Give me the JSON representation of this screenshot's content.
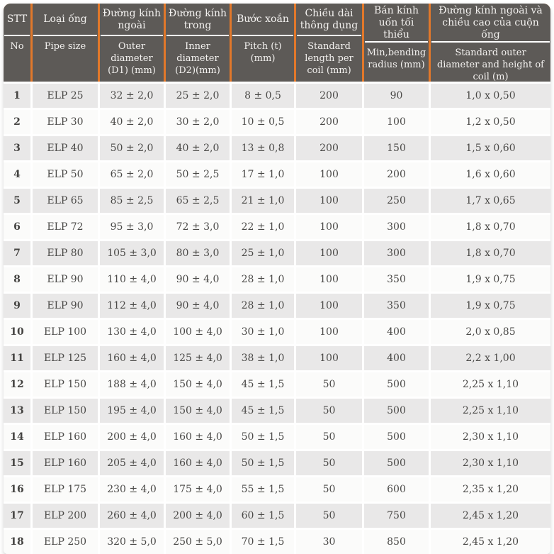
{
  "colors": {
    "header_bg": "#5d5a57",
    "header_text": "#f4f2f0",
    "divider_orange": "#e2782a",
    "divider_white": "#ffffff",
    "row_odd": "#e9e8e8",
    "row_even": "#fbfbfa",
    "body_text": "#4a4947"
  },
  "table": {
    "columns": [
      {
        "vn": "STT",
        "en": "No"
      },
      {
        "vn": "Loại ống",
        "en": "Pipe size"
      },
      {
        "vn": "Đường kính ngoài",
        "en": "Outer diameter (D1) (mm)"
      },
      {
        "vn": "Đường kính trong",
        "en": "Inner diameter (D2)(mm)"
      },
      {
        "vn": "Bước xoắn",
        "en": "Pitch (t)(mm)"
      },
      {
        "vn": "Chiều dài thông dụng",
        "en": "Standard length per coil (mm)"
      },
      {
        "vn": "Bán kính uốn tối thiểu",
        "en": "Min,bending radius (mm)"
      },
      {
        "vn": "Đường kính ngoài và chiều cao của cuộn ống",
        "en": "Standard outer diameter and height of coil (m)"
      }
    ],
    "rows": [
      [
        "1",
        "ELP 25",
        "32 ± 2,0",
        "25 ± 2,0",
        "8 ± 0,5",
        "200",
        "90",
        "1,0 x 0,50"
      ],
      [
        "2",
        "ELP 30",
        "40 ± 2,0",
        "30 ± 2,0",
        "10 ± 0,5",
        "200",
        "100",
        "1,2 x 0,50"
      ],
      [
        "3",
        "ELP 40",
        "50 ± 2,0",
        "40 ± 2,0",
        "13 ± 0,8",
        "200",
        "150",
        "1,5 x 0,60"
      ],
      [
        "4",
        "ELP 50",
        "65 ± 2,0",
        "50 ± 2,5",
        "17 ± 1,0",
        "100",
        "200",
        "1,6 x 0,60"
      ],
      [
        "5",
        "ELP 65",
        "85 ± 2,5",
        "65 ± 2,5",
        "21 ± 1,0",
        "100",
        "250",
        "1,7 x 0,65"
      ],
      [
        "6",
        "ELP 72",
        "95 ± 3,0",
        "72 ± 3,0",
        "22 ± 1,0",
        "100",
        "300",
        "1,8 x 0,70"
      ],
      [
        "7",
        "ELP 80",
        "105 ± 3,0",
        "80 ± 3,0",
        "25 ± 1,0",
        "100",
        "300",
        "1,8 x 0,70"
      ],
      [
        "8",
        "ELP 90",
        "110 ± 4,0",
        "90 ± 4,0",
        "28 ± 1,0",
        "100",
        "350",
        "1,9 x 0,75"
      ],
      [
        "9",
        "ELP 90",
        "112 ± 4,0",
        "90 ± 4,0",
        "28 ± 1,0",
        "100",
        "350",
        "1,9 x 0,75"
      ],
      [
        "10",
        "ELP 100",
        "130 ± 4,0",
        "100 ± 4,0",
        "30 ± 1,0",
        "100",
        "400",
        "2,0 x 0,85"
      ],
      [
        "11",
        "ELP 125",
        "160 ± 4,0",
        "125 ± 4,0",
        "38 ± 1,0",
        "100",
        "400",
        "2,2 x 1,00"
      ],
      [
        "12",
        "ELP 150",
        "188 ± 4,0",
        "150 ± 4,0",
        "45 ± 1,5",
        "50",
        "500",
        "2,25 x 1,10"
      ],
      [
        "13",
        "ELP 150",
        "195 ± 4,0",
        "150 ± 4,0",
        "45 ± 1,5",
        "50",
        "500",
        "2,25 x 1,10"
      ],
      [
        "14",
        "ELP 160",
        "200 ± 4,0",
        "160 ± 4,0",
        "50 ± 1,5",
        "50",
        "500",
        "2,30 x 1,10"
      ],
      [
        "15",
        "ELP 160",
        "205 ± 4,0",
        "160 ± 4,0",
        "50 ± 1,5",
        "50",
        "500",
        "2,30 x 1,10"
      ],
      [
        "16",
        "ELP 175",
        "230 ± 4,0",
        "175 ± 4,0",
        "55 ± 1,5",
        "50",
        "600",
        "2,35 x 1,20"
      ],
      [
        "17",
        "ELP 200",
        "260 ± 4,0",
        "200 ± 4,0",
        "60 ± 1,5",
        "50",
        "750",
        "2,45 x 1,20"
      ],
      [
        "18",
        "ELP 250",
        "320 ± 5,0",
        "250 ± 5,0",
        "70 ± 1,5",
        "30",
        "850",
        "2,45 x 1,20"
      ]
    ]
  }
}
